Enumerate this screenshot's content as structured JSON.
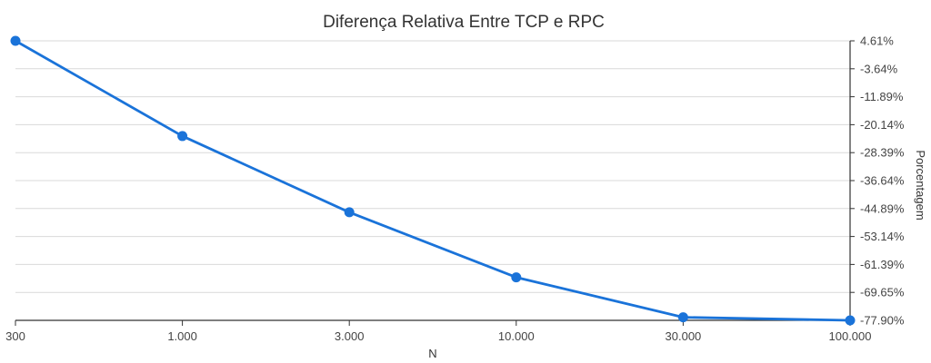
{
  "chart_data": {
    "type": "line",
    "title": "Diferença Relativa Entre TCP e RPC",
    "xlabel": "N",
    "ylabel": "Porcentagem",
    "categories": [
      "300",
      "1.000",
      "3.000",
      "10.000",
      "30.000",
      "100.000"
    ],
    "series": [
      {
        "name": "Diferença Relativa",
        "values": [
          4.61,
          -23.5,
          -46.0,
          -65.2,
          -77.0,
          -77.9
        ]
      }
    ],
    "ylim": [
      -77.9,
      4.61
    ],
    "yticks": [
      "4.61%",
      "-3.64%",
      "-11.89%",
      "-20.14%",
      "-28.39%",
      "-36.64%",
      "-44.89%",
      "-53.14%",
      "-61.39%",
      "-69.65%",
      "-77.90%"
    ],
    "yaxis_position": "right",
    "grid": true,
    "colors": {
      "line": "#1a73d9",
      "point": "#1a73d9"
    }
  }
}
